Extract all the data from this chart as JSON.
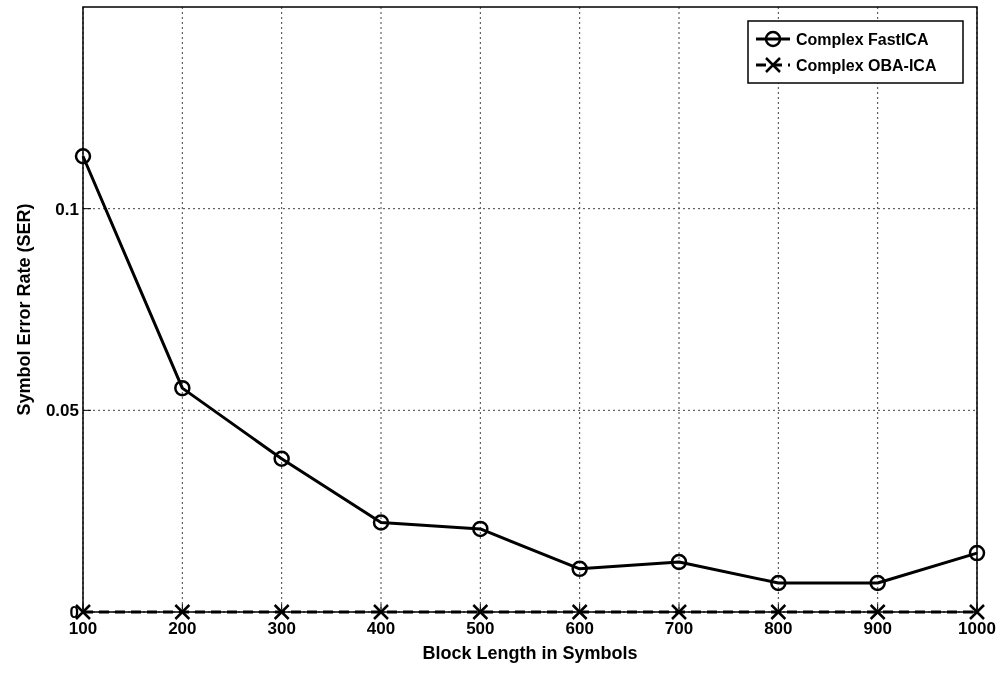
{
  "chart_data": {
    "type": "line",
    "xlabel": "Block Length in Symbols",
    "ylabel": "Symbol Error Rate (SER)",
    "x": [
      100,
      200,
      300,
      400,
      500,
      600,
      700,
      800,
      900,
      1000
    ],
    "series": [
      {
        "name": "Complex FastICA",
        "color": "#000000",
        "marker": "circle",
        "line_style": "solid",
        "values": [
          0.113,
          0.0555,
          0.038,
          0.0222,
          0.0206,
          0.0107,
          0.0124,
          0.0072,
          0.0072,
          0.0146
        ]
      },
      {
        "name": "Complex OBA-ICA",
        "color": "#000000",
        "marker": "cross",
        "line_style": "dashed",
        "values": [
          0,
          0,
          0,
          0,
          0,
          0,
          0,
          0,
          0,
          0
        ]
      }
    ],
    "xlim": [
      100,
      1000
    ],
    "ylim": [
      0,
      0.15
    ],
    "xticks": [
      100,
      200,
      300,
      400,
      500,
      600,
      700,
      800,
      900,
      1000
    ],
    "yticks": [
      0,
      0.05,
      0.1
    ],
    "grid": true,
    "legend": "top right"
  }
}
